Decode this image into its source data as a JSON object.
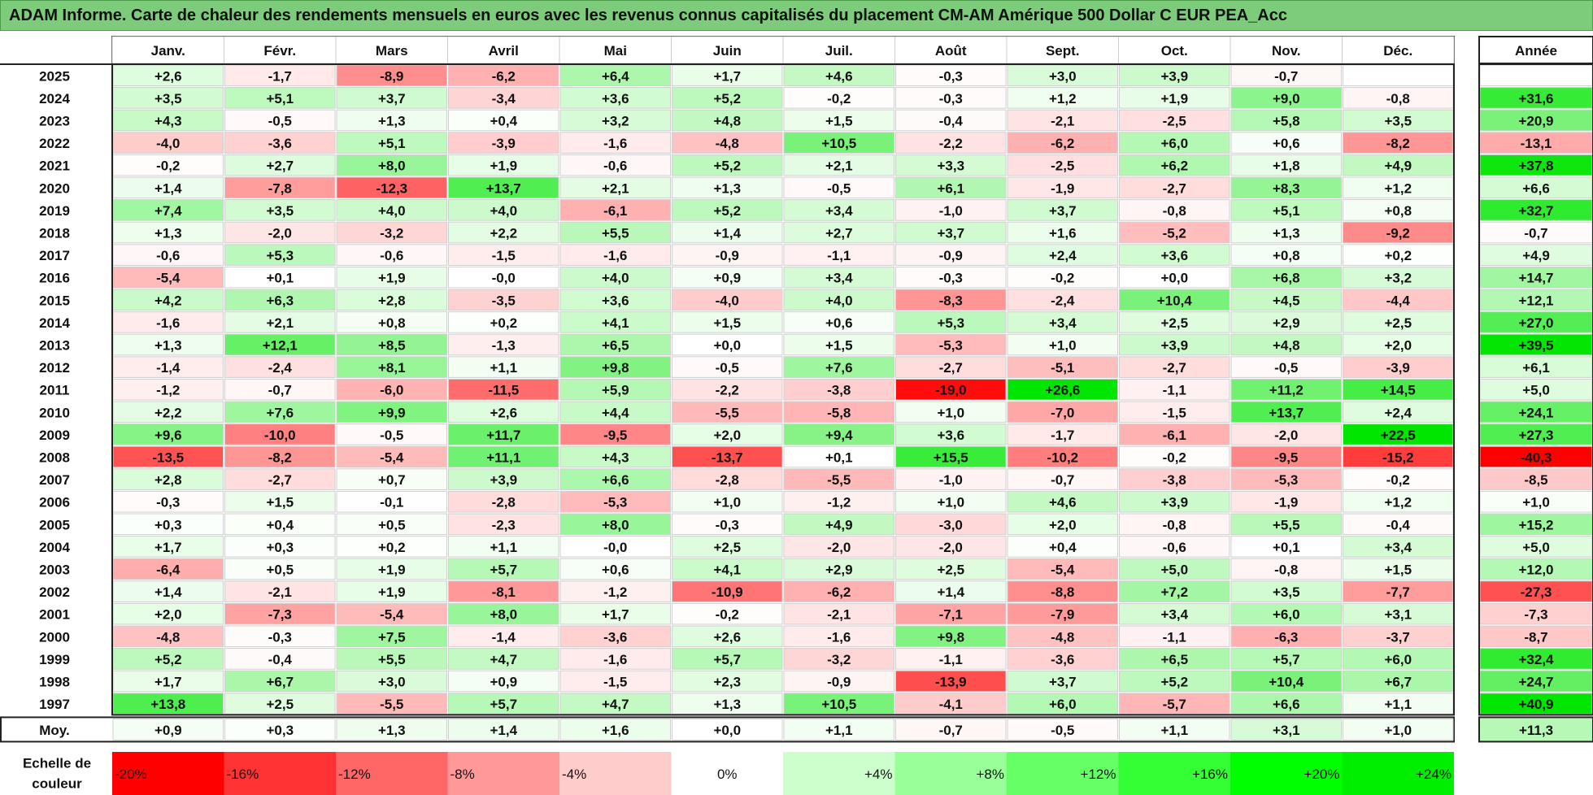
{
  "title": "ADAM Informe. Carte de chaleur des rendements mensuels en euros avec les revenus connus capitalisés du placement CM-AM Amérique 500 Dollar C EUR PEA_Acc",
  "chart_data": {
    "type": "heatmap",
    "months": [
      "Janv.",
      "Févr.",
      "Mars",
      "Avril",
      "Mai",
      "Juin",
      "Juil.",
      "Août",
      "Sept.",
      "Oct.",
      "Nov.",
      "Déc."
    ],
    "annual_label": "Année",
    "average_label": "Moy.",
    "rows": [
      {
        "year": "2025",
        "values": [
          "+2,6",
          "-1,7",
          "-8,9",
          "-6,2",
          "+6,4",
          "+1,7",
          "+4,6",
          "-0,3",
          "+3,0",
          "+3,9",
          "-0,7",
          ""
        ],
        "annual": ""
      },
      {
        "year": "2024",
        "values": [
          "+3,5",
          "+5,1",
          "+3,7",
          "-3,4",
          "+3,6",
          "+5,2",
          "-0,2",
          "-0,3",
          "+1,2",
          "+1,9",
          "+9,0",
          "-0,8"
        ],
        "annual": "+31,6"
      },
      {
        "year": "2023",
        "values": [
          "+4,3",
          "-0,5",
          "+1,3",
          "+0,4",
          "+3,2",
          "+4,8",
          "+1,5",
          "-0,4",
          "-2,1",
          "-2,5",
          "+5,8",
          "+3,5"
        ],
        "annual": "+20,9"
      },
      {
        "year": "2022",
        "values": [
          "-4,0",
          "-3,6",
          "+5,1",
          "-3,9",
          "-1,6",
          "-4,8",
          "+10,5",
          "-2,2",
          "-6,2",
          "+6,0",
          "+0,6",
          "-8,2"
        ],
        "annual": "-13,1"
      },
      {
        "year": "2021",
        "values": [
          "-0,2",
          "+2,7",
          "+8,0",
          "+1,9",
          "-0,6",
          "+5,2",
          "+2,1",
          "+3,3",
          "-2,5",
          "+6,2",
          "+1,8",
          "+4,9"
        ],
        "annual": "+37,8"
      },
      {
        "year": "2020",
        "values": [
          "+1,4",
          "-7,8",
          "-12,3",
          "+13,7",
          "+2,1",
          "+1,3",
          "-0,5",
          "+6,1",
          "-1,9",
          "-2,7",
          "+8,3",
          "+1,2"
        ],
        "annual": "+6,6"
      },
      {
        "year": "2019",
        "values": [
          "+7,4",
          "+3,5",
          "+4,0",
          "+4,0",
          "-6,1",
          "+5,2",
          "+3,4",
          "-1,0",
          "+3,7",
          "-0,8",
          "+5,1",
          "+0,8"
        ],
        "annual": "+32,7"
      },
      {
        "year": "2018",
        "values": [
          "+1,3",
          "-2,0",
          "-3,2",
          "+2,2",
          "+5,5",
          "+1,4",
          "+2,7",
          "+3,7",
          "+1,6",
          "-5,2",
          "+1,3",
          "-9,2"
        ],
        "annual": "-0,7"
      },
      {
        "year": "2017",
        "values": [
          "-0,6",
          "+5,3",
          "-0,6",
          "-1,5",
          "-1,6",
          "-0,9",
          "-1,1",
          "-0,9",
          "+2,4",
          "+3,6",
          "+0,8",
          "+0,2"
        ],
        "annual": "+4,9"
      },
      {
        "year": "2016",
        "values": [
          "-5,4",
          "+0,1",
          "+1,9",
          "-0,0",
          "+4,0",
          "+0,9",
          "+3,4",
          "-0,3",
          "-0,2",
          "+0,0",
          "+6,8",
          "+3,2"
        ],
        "annual": "+14,7"
      },
      {
        "year": "2015",
        "values": [
          "+4,2",
          "+6,3",
          "+2,8",
          "-3,5",
          "+3,6",
          "-4,0",
          "+4,0",
          "-8,3",
          "-2,4",
          "+10,4",
          "+4,5",
          "-4,4"
        ],
        "annual": "+12,1"
      },
      {
        "year": "2014",
        "values": [
          "-1,6",
          "+2,1",
          "+0,8",
          "+0,2",
          "+4,1",
          "+1,5",
          "+0,6",
          "+5,3",
          "+3,4",
          "+2,5",
          "+2,9",
          "+2,5"
        ],
        "annual": "+27,0"
      },
      {
        "year": "2013",
        "values": [
          "+1,3",
          "+12,1",
          "+8,5",
          "-1,3",
          "+6,5",
          "+0,0",
          "+1,5",
          "-5,3",
          "+1,0",
          "+3,9",
          "+4,8",
          "+2,0"
        ],
        "annual": "+39,5"
      },
      {
        "year": "2012",
        "values": [
          "-1,4",
          "-2,4",
          "+8,1",
          "+1,1",
          "+9,8",
          "-0,5",
          "+7,6",
          "-2,7",
          "-5,1",
          "-2,7",
          "-0,5",
          "-3,9"
        ],
        "annual": "+6,1"
      },
      {
        "year": "2011",
        "values": [
          "-1,2",
          "-0,7",
          "-6,0",
          "-11,5",
          "+5,9",
          "-2,2",
          "-3,8",
          "-19,0",
          "+26,6",
          "-1,1",
          "+11,2",
          "+14,5"
        ],
        "annual": "+5,0"
      },
      {
        "year": "2010",
        "values": [
          "+2,2",
          "+7,6",
          "+9,9",
          "+2,6",
          "+4,4",
          "-5,5",
          "-5,8",
          "+1,0",
          "-7,0",
          "-1,5",
          "+13,7",
          "+2,4"
        ],
        "annual": "+24,1"
      },
      {
        "year": "2009",
        "values": [
          "+9,6",
          "-10,0",
          "-0,5",
          "+11,7",
          "-9,5",
          "+2,0",
          "+9,4",
          "+3,6",
          "-1,7",
          "-6,1",
          "-2,0",
          "+22,5"
        ],
        "annual": "+27,3"
      },
      {
        "year": "2008",
        "values": [
          "-13,5",
          "-8,2",
          "-5,4",
          "+11,1",
          "+4,3",
          "-13,7",
          "+0,1",
          "+15,5",
          "-10,2",
          "-0,2",
          "-9,5",
          "-15,2"
        ],
        "annual": "-40,3"
      },
      {
        "year": "2007",
        "values": [
          "+2,8",
          "-2,7",
          "+0,7",
          "+3,9",
          "+6,6",
          "-2,8",
          "-5,5",
          "-1,0",
          "-0,7",
          "-3,8",
          "-5,3",
          "-0,2"
        ],
        "annual": "-8,5"
      },
      {
        "year": "2006",
        "values": [
          "-0,3",
          "+1,5",
          "-0,1",
          "-2,8",
          "-5,3",
          "+1,0",
          "-1,2",
          "+1,0",
          "+4,6",
          "+3,9",
          "-1,9",
          "+1,2"
        ],
        "annual": "+1,0"
      },
      {
        "year": "2005",
        "values": [
          "+0,3",
          "+0,4",
          "+0,5",
          "-2,3",
          "+8,0",
          "-0,3",
          "+4,9",
          "-3,0",
          "+2,0",
          "-0,8",
          "+5,5",
          "-0,4"
        ],
        "annual": "+15,2"
      },
      {
        "year": "2004",
        "values": [
          "+1,7",
          "+0,3",
          "+0,2",
          "+1,1",
          "-0,0",
          "+2,5",
          "-2,0",
          "-2,0",
          "+0,4",
          "-0,6",
          "+0,1",
          "+3,4"
        ],
        "annual": "+5,0"
      },
      {
        "year": "2003",
        "values": [
          "-6,4",
          "+0,5",
          "+1,9",
          "+5,7",
          "+0,6",
          "+4,1",
          "+2,9",
          "+2,5",
          "-5,4",
          "+5,0",
          "-0,8",
          "+1,5"
        ],
        "annual": "+12,0"
      },
      {
        "year": "2002",
        "values": [
          "+1,4",
          "-2,1",
          "+1,9",
          "-8,1",
          "-1,2",
          "-10,9",
          "-6,2",
          "+1,4",
          "-8,8",
          "+7,2",
          "+3,5",
          "-7,7"
        ],
        "annual": "-27,3"
      },
      {
        "year": "2001",
        "values": [
          "+2,0",
          "-7,3",
          "-5,4",
          "+8,0",
          "+1,7",
          "-0,2",
          "-2,1",
          "-7,1",
          "-7,9",
          "+3,4",
          "+6,0",
          "+3,1"
        ],
        "annual": "-7,3"
      },
      {
        "year": "2000",
        "values": [
          "-4,8",
          "-0,3",
          "+7,5",
          "-1,4",
          "-3,6",
          "+2,6",
          "-1,6",
          "+9,8",
          "-4,8",
          "-1,1",
          "-6,3",
          "-3,7"
        ],
        "annual": "-8,7"
      },
      {
        "year": "1999",
        "values": [
          "+5,2",
          "-0,4",
          "+5,5",
          "+4,7",
          "-1,6",
          "+5,7",
          "-3,2",
          "-1,1",
          "-3,6",
          "+6,5",
          "+5,7",
          "+6,0"
        ],
        "annual": "+32,4"
      },
      {
        "year": "1998",
        "values": [
          "+1,7",
          "+6,7",
          "+3,0",
          "+0,9",
          "-1,5",
          "+2,3",
          "-0,9",
          "-13,9",
          "+3,7",
          "+5,2",
          "+10,4",
          "+6,7"
        ],
        "annual": "+24,7"
      },
      {
        "year": "1997",
        "values": [
          "+13,8",
          "+2,5",
          "-5,5",
          "+5,7",
          "+4,7",
          "+1,3",
          "+10,5",
          "-4,1",
          "+6,0",
          "-5,7",
          "+6,6",
          "+1,1"
        ],
        "annual": "+40,9"
      }
    ],
    "averages": [
      "+0,9",
      "+0,3",
      "+1,3",
      "+1,4",
      "+1,6",
      "+0,0",
      "+1,1",
      "-0,7",
      "-0,5",
      "+1,1",
      "+3,1",
      "+1,0"
    ],
    "average_annual": "+11,3",
    "scale_label_line1": "Echelle de",
    "scale_label_line2": "couleur",
    "scale": [
      {
        "label": "-20%",
        "color": "#ff0000"
      },
      {
        "label": "-16%",
        "color": "#ff3333"
      },
      {
        "label": "-12%",
        "color": "#ff6666"
      },
      {
        "label": "-8%",
        "color": "#ff9999"
      },
      {
        "label": "-4%",
        "color": "#ffcccc"
      },
      {
        "label": "0%",
        "color": "#ffffff"
      },
      {
        "label": "+4%",
        "color": "#ccffcc"
      },
      {
        "label": "+8%",
        "color": "#99ff99"
      },
      {
        "label": "+12%",
        "color": "#66ff66"
      },
      {
        "label": "+16%",
        "color": "#33ff33"
      },
      {
        "label": "+20%",
        "color": "#00ff00"
      },
      {
        "label": "+24%",
        "color": "#00ee00"
      }
    ]
  }
}
